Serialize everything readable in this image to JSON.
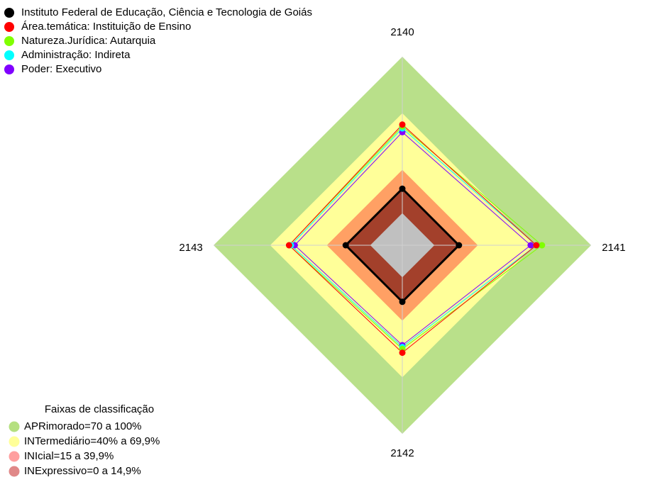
{
  "chart_data": {
    "type": "radar",
    "axes": [
      "2140",
      "2141",
      "2142",
      "2143"
    ],
    "rlim": [
      0,
      100
    ],
    "bands": [
      {
        "level": 100,
        "color": "#b9e08a"
      },
      {
        "level": 70,
        "color": "#ffff99"
      },
      {
        "level": 40,
        "color": "#ffa064"
      },
      {
        "level": 30,
        "color": "#a3402b"
      },
      {
        "level": 17,
        "color": "#c0c0c0"
      }
    ],
    "series": [
      {
        "name": "Instituto Federal de Educação, Ciência e Tecnologia de Goiás",
        "color": "#000000",
        "values": [
          30,
          30,
          30,
          30
        ]
      },
      {
        "name": "Área.temática: Instituição de Ensino",
        "color": "#ff0000",
        "values": [
          64,
          71,
          57,
          60
        ]
      },
      {
        "name": "Natureza.Jurídica: Autarquia",
        "color": "#80ff00",
        "values": [
          63,
          74,
          55,
          60
        ]
      },
      {
        "name": "Administração: Indireta",
        "color": "#00ffff",
        "values": [
          62,
          71,
          54,
          59
        ]
      },
      {
        "name": "Poder: Executivo",
        "color": "#8000ff",
        "values": [
          60,
          68,
          53,
          57
        ]
      }
    ],
    "class_legend": {
      "title": "Faixas de classificação",
      "entries": [
        {
          "label": "APRimorado=70 a 100%",
          "color": "#b5e080"
        },
        {
          "label": "INTermediário=40% a 69,9%",
          "color": "#ffff99"
        },
        {
          "label": "INIcial=15 a 39,9%",
          "color": "#ff9f9f"
        },
        {
          "label": "INExpressivo=0 a 14,9%",
          "color": "#e08888"
        }
      ]
    }
  }
}
